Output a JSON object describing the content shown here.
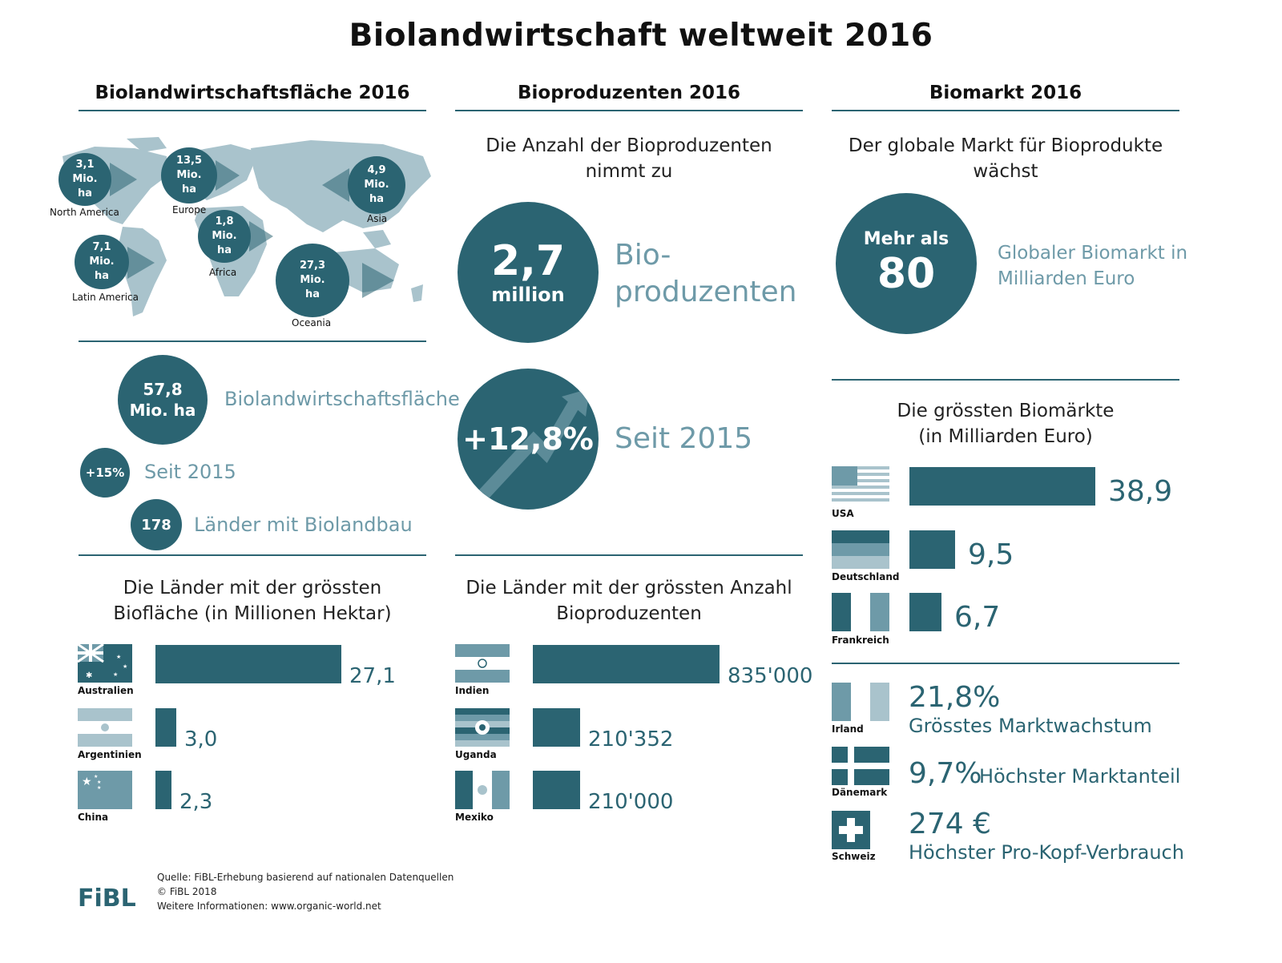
{
  "title": "Biolandwirtschaft weltweit 2016",
  "columns": {
    "area": "Biolandwirtschaftsfläche 2016",
    "producers": "Bioproduzenten 2016",
    "market": "Biomarkt 2016"
  },
  "map": {
    "regions": [
      {
        "value": "3,1\nMio.\nha",
        "name": "North America"
      },
      {
        "value": "13,5\nMio.\nha",
        "name": "Europe"
      },
      {
        "value": "4,9\nMio.\nha",
        "name": "Asia"
      },
      {
        "value": "1,8\nMio.\nha",
        "name": "Africa"
      },
      {
        "value": "7,1\nMio.\nha",
        "name": "Latin America"
      },
      {
        "value": "27,3\nMio.\nha",
        "name": "Oceania"
      }
    ]
  },
  "area_stats": {
    "total_value": "57,8 Mio. ha",
    "total_label": "Biolandwirtschaftsfläche",
    "growth_value": "+15%",
    "growth_label": "Seit 2015",
    "countries_value": "178",
    "countries_label": "Länder mit Biolandbau"
  },
  "producers_stats": {
    "intro": "Die Anzahl der Bioproduzenten nimmt zu",
    "count_value": "2,7",
    "count_unit": "million",
    "count_label_1": "Bio-",
    "count_label_2": "produzenten",
    "growth_value": "+12,8%",
    "growth_label": "Seit 2015"
  },
  "market_stats": {
    "intro": "Der globale Markt für Bioprodukte wächst",
    "value_prefix": "Mehr als",
    "value": "80",
    "label_1": "Globaler Biomarkt in",
    "label_2": "Milliarden Euro",
    "biggest_title_1": "Die grössten Biomärkte",
    "biggest_title_2": "(in Milliarden Euro)"
  },
  "highlights": [
    {
      "country": "Irland",
      "value": "21,8%",
      "label": "Grösstes Marktwachstum"
    },
    {
      "country": "Dänemark",
      "value": "9,7%",
      "label": "Höchster Marktanteil"
    },
    {
      "country": "Schweiz",
      "value": "274 €",
      "label": "Höchster Pro-Kopf-Verbrauch"
    }
  ],
  "colors": {
    "primary": "#2b6472",
    "light": "#6e9aa8",
    "map": "#a9c3cc"
  },
  "chart_data": [
    {
      "type": "bar",
      "title": "Die Länder mit der grössten Biofläche (in Millionen Hektar)",
      "categories": [
        "Australien",
        "Argentinien",
        "China"
      ],
      "values": [
        27.1,
        3.0,
        2.3
      ],
      "labels": [
        "27,1",
        "3,0",
        "2,3"
      ]
    },
    {
      "type": "bar",
      "title": "Die Länder mit der grössten Anzahl Bioproduzenten",
      "categories": [
        "Indien",
        "Uganda",
        "Mexiko"
      ],
      "values": [
        835000,
        210352,
        210000
      ],
      "labels": [
        "835'000",
        "210'352",
        "210'000"
      ]
    },
    {
      "type": "bar",
      "title": "Die grössten Biomärkte (in Milliarden Euro)",
      "categories": [
        "USA",
        "Deutschland",
        "Frankreich"
      ],
      "values": [
        38.9,
        9.5,
        6.7
      ],
      "labels": [
        "38,9",
        "9,5",
        "6,7"
      ]
    }
  ],
  "footer": {
    "logo": "FiBL",
    "line1": "Quelle: FiBL-Erhebung basierend auf nationalen Datenquellen",
    "line2": "© FiBL 2018",
    "line3": "Weitere Informationen: www.organic-world.net"
  }
}
